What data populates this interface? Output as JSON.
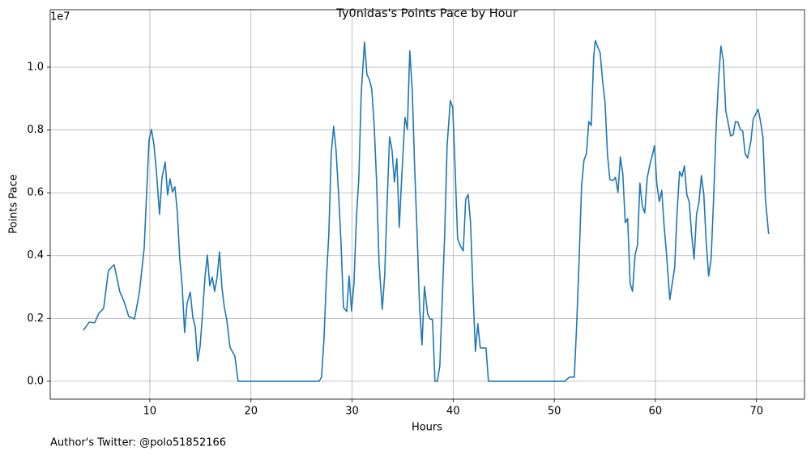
{
  "chart_data": {
    "type": "line",
    "title": "Ty0nidas's Points Pace by Hour",
    "x_label": "Hours",
    "y_label": "Points Pace",
    "y_offset_label": "1e7",
    "footnote": "Author's Twitter: @polo51852166",
    "color": "#1f77b4",
    "grid": true,
    "xlim": [
      0.15,
      74.75
    ],
    "ylim": [
      -570000,
      11830000
    ],
    "xticks": [
      10,
      20,
      30,
      40,
      50,
      60,
      70
    ],
    "yticks": [
      {
        "value": 0,
        "label": "0.0"
      },
      {
        "value": 2000000,
        "label": "0.2"
      },
      {
        "value": 4000000,
        "label": "0.4"
      },
      {
        "value": 6000000,
        "label": "0.6"
      },
      {
        "value": 8000000,
        "label": "0.8"
      },
      {
        "value": 10000000,
        "label": "1.0"
      }
    ],
    "x": [
      3.43,
      4.0,
      4.55,
      4.95,
      5.43,
      5.91,
      6.47,
      7.04,
      7.44,
      7.92,
      8.48,
      8.96,
      9.44,
      9.92,
      10.16,
      10.4,
      10.64,
      10.96,
      11.2,
      11.52,
      11.76,
      12.0,
      12.24,
      12.48,
      12.72,
      12.96,
      13.2,
      13.44,
      13.68,
      14.0,
      14.25,
      14.49,
      14.73,
      14.97,
      15.2,
      15.45,
      15.69,
      15.93,
      16.17,
      16.41,
      16.65,
      16.89,
      17.13,
      17.37,
      17.61,
      17.93,
      18.41,
      18.73,
      26.74,
      26.98,
      27.22,
      27.46,
      27.7,
      27.94,
      28.18,
      28.42,
      28.67,
      28.91,
      29.15,
      29.47,
      29.71,
      29.95,
      30.19,
      30.43,
      30.67,
      30.91,
      31.23,
      31.47,
      31.71,
      31.95,
      32.19,
      32.43,
      32.67,
      32.99,
      33.23,
      33.47,
      33.71,
      33.95,
      34.19,
      34.43,
      34.67,
      34.91,
      35.23,
      35.47,
      35.71,
      35.95,
      36.2,
      36.44,
      36.68,
      36.92,
      37.16,
      37.48,
      37.72,
      37.96,
      38.2,
      38.44,
      38.68,
      38.92,
      39.16,
      39.4,
      39.72,
      39.96,
      40.2,
      40.44,
      40.68,
      41.0,
      41.24,
      41.48,
      41.72,
      41.96,
      42.2,
      42.44,
      42.68,
      43.25,
      43.49,
      51.02,
      51.5,
      51.98,
      52.22,
      52.46,
      52.7,
      52.94,
      53.18,
      53.42,
      53.66,
      53.9,
      54.06,
      54.3,
      54.54,
      54.78,
      55.02,
      55.26,
      55.5,
      55.82,
      56.06,
      56.3,
      56.54,
      56.78,
      57.02,
      57.26,
      57.5,
      57.74,
      57.99,
      58.23,
      58.47,
      58.71,
      58.95,
      59.19,
      59.43,
      59.67,
      59.91,
      60.15,
      60.39,
      60.63,
      60.87,
      61.11,
      61.43,
      61.67,
      61.91,
      62.15,
      62.39,
      62.63,
      62.87,
      63.11,
      63.35,
      63.59,
      63.83,
      64.07,
      64.31,
      64.55,
      64.79,
      65.03,
      65.27,
      65.51,
      65.76,
      66.0,
      66.24,
      66.48,
      66.72,
      66.96,
      67.2,
      67.44,
      67.68,
      67.92,
      68.16,
      68.4,
      68.64,
      68.88,
      69.12,
      69.44,
      69.68,
      69.92,
      70.16,
      70.4,
      70.64,
      70.88,
      71.2
    ],
    "values": [
      1620000,
      1880000,
      1860000,
      2160000,
      2320000,
      3530000,
      3710000,
      2840000,
      2550000,
      2060000,
      1980000,
      2810000,
      4230000,
      7680000,
      8020000,
      7550000,
      6730000,
      5310000,
      6470000,
      6980000,
      5930000,
      6440000,
      6030000,
      6190000,
      5390000,
      3890000,
      3040000,
      1550000,
      2470000,
      2840000,
      2040000,
      1730000,
      640000,
      1110000,
      2090000,
      3300000,
      4020000,
      3040000,
      3320000,
      2860000,
      3300000,
      4120000,
      2990000,
      2350000,
      1960000,
      1080000,
      800000,
      0,
      0,
      130000,
      1310000,
      3250000,
      4660000,
      7240000,
      8120000,
      7350000,
      5950000,
      4410000,
      2350000,
      2220000,
      3350000,
      2240000,
      3120000,
      5180000,
      6470000,
      9180000,
      10800000,
      9770000,
      9610000,
      9300000,
      8140000,
      6340000,
      3760000,
      2290000,
      3380000,
      5700000,
      7780000,
      7370000,
      6340000,
      7090000,
      4900000,
      6470000,
      8400000,
      8020000,
      10520000,
      9300000,
      6730000,
      4660000,
      2350000,
      1160000,
      3020000,
      2140000,
      1980000,
      1960000,
      0,
      0,
      490000,
      2600000,
      4660000,
      7500000,
      8940000,
      8710000,
      6730000,
      4540000,
      4330000,
      4150000,
      5800000,
      5950000,
      5050000,
      2860000,
      950000,
      1830000,
      1060000,
      1060000,
      0,
      0,
      130000,
      130000,
      1830000,
      3890000,
      6210000,
      7040000,
      7240000,
      8270000,
      8140000,
      10340000,
      10850000,
      10640000,
      10460000,
      9560000,
      8890000,
      7240000,
      6420000,
      6390000,
      6490000,
      6010000,
      7140000,
      6600000,
      5050000,
      5180000,
      3120000,
      2860000,
      4020000,
      4330000,
      6310000,
      5570000,
      5360000,
      6470000,
      6860000,
      7160000,
      7500000,
      6260000,
      5720000,
      6080000,
      4920000,
      4020000,
      2600000,
      3120000,
      3630000,
      5390000,
      6680000,
      6520000,
      6860000,
      5950000,
      5700000,
      4660000,
      3890000,
      5310000,
      5700000,
      6550000,
      5950000,
      4410000,
      3350000,
      3890000,
      5820000,
      8020000,
      9560000,
      10670000,
      10210000,
      8610000,
      8220000,
      7810000,
      7840000,
      8270000,
      8250000,
      8020000,
      7960000,
      7240000,
      7110000,
      7630000,
      8350000,
      8510000,
      8660000,
      8270000,
      7760000,
      5820000,
      4690000
    ]
  }
}
